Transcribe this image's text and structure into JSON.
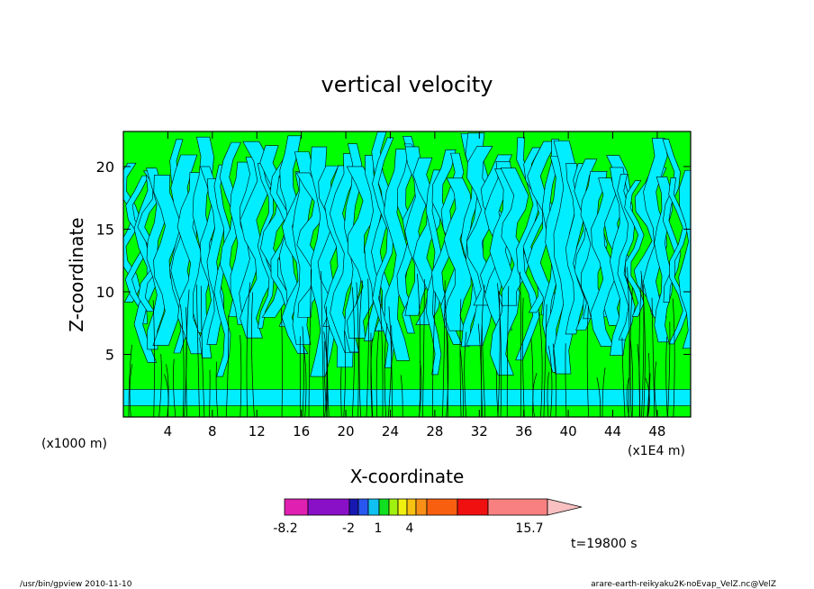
{
  "chart_data": {
    "type": "heatmap",
    "title": "vertical velocity",
    "xlabel": "X-coordinate",
    "ylabel": "Z-coordinate",
    "x_unit_left": "(x1000 m)",
    "x_unit_right": "(x1E4 m)",
    "xlim": [
      0,
      51
    ],
    "ylim": [
      0,
      22.8
    ],
    "x_ticks": [
      4,
      8,
      12,
      16,
      20,
      24,
      28,
      32,
      36,
      40,
      44,
      48
    ],
    "y_ticks": [
      5,
      10,
      15,
      20
    ],
    "colorbar": {
      "colors": [
        "#e020b0",
        "#8a10c8",
        "#1818b0",
        "#2858f0",
        "#10c0f0",
        "#10e020",
        "#a0f010",
        "#f0f010",
        "#f8c010",
        "#f89018",
        "#f86010",
        "#f01010",
        "#f88080",
        "#f8c0c0"
      ],
      "levels": [
        -8.2,
        -6,
        -4,
        -3,
        -2,
        -1,
        0,
        1,
        2,
        3,
        4,
        8,
        12,
        15.7
      ],
      "tick_labels": [
        {
          "value": -8.2,
          "label": "-8.2"
        },
        {
          "value": -2,
          "label": "-2"
        },
        {
          "value": 1,
          "label": "1"
        },
        {
          "value": 4,
          "label": "4"
        },
        {
          "value": 15.7,
          "label": "15.7"
        }
      ]
    },
    "dominant_colors": {
      "positive_weak": "#00ff00",
      "negative_weak": "#00eeff"
    }
  },
  "time_label": "t=19800 s",
  "footer": {
    "left": "/usr/bin/gpview   2010-11-10",
    "right": "arare-earth-reikyaku2K-noEvap_VelZ.nc@VelZ"
  }
}
